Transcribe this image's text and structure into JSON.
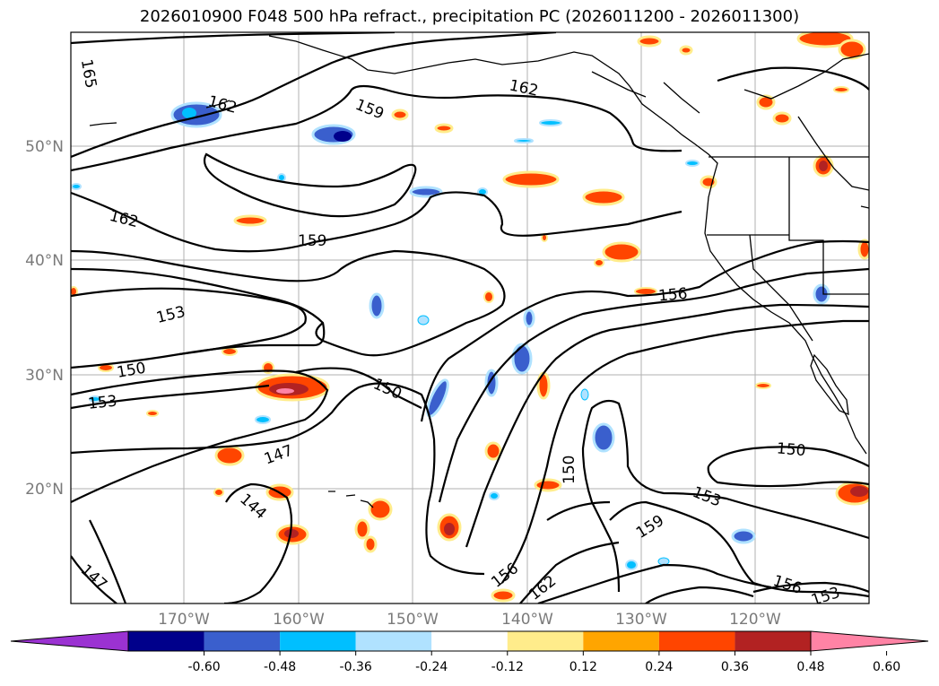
{
  "title": "2026010900 F048 500 hPa refract., precipitation PC (2026011200 - 2026011300)",
  "map": {
    "lat_labels": [
      "50°N",
      "40°N",
      "30°N",
      "20°N"
    ],
    "lon_labels": [
      "170°W",
      "160°W",
      "150°W",
      "140°W",
      "130°W",
      "120°W"
    ],
    "contour_labels": [
      "165",
      "162",
      "159",
      "162",
      "162",
      "159",
      "156",
      "153",
      "150",
      "153",
      "150",
      "147",
      "144",
      "147",
      "150",
      "150",
      "153",
      "159",
      "156",
      "162",
      "156",
      "153"
    ]
  },
  "colorbar": {
    "ticks": [
      "-0.60",
      "-0.48",
      "-0.36",
      "-0.24",
      "-0.12",
      "0.12",
      "0.24",
      "0.36",
      "0.48",
      "0.60"
    ],
    "colors": [
      "#9b32d2",
      "#00008b",
      "#3a5fcd",
      "#00bfff",
      "#b0e2ff",
      "#ffffff",
      "#ffec8b",
      "#ffa500",
      "#ff4500",
      "#b22222",
      "#ff83a5"
    ]
  }
}
